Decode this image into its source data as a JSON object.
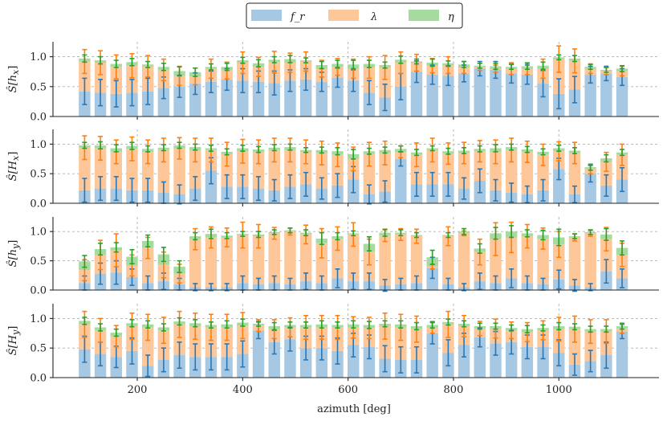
{
  "chart_data": {
    "type": "bar",
    "layout": "stacked bars with error bars, 4 vertically stacked panels sharing x axis",
    "legend": {
      "position": "top-center",
      "entries": [
        {
          "key": "fr",
          "label": "f_r",
          "color": "#a6c8e3"
        },
        {
          "key": "lambda",
          "label": "λ",
          "color": "#fdc799"
        },
        {
          "key": "eta",
          "label": "η",
          "color": "#a6dba0"
        }
      ]
    },
    "colors": {
      "fr": "#a6c8e3",
      "lambda": "#fdc799",
      "eta": "#a6dba0",
      "fr_err": "#2a77b4",
      "lambda_err": "#ff7f0e",
      "eta_err": "#2ca02c",
      "grid": "#b0b0b0"
    },
    "xlabel": "azimuth [deg]",
    "xlim": [
      40,
      1190
    ],
    "xticks": [
      200,
      400,
      600,
      800,
      1000
    ],
    "vlines": [
      200,
      400,
      600,
      800,
      1000
    ],
    "bar_width_units": 22,
    "x": [
      100,
      130,
      160,
      190,
      220,
      250,
      280,
      310,
      340,
      370,
      400,
      430,
      460,
      490,
      520,
      550,
      580,
      610,
      640,
      670,
      700,
      730,
      760,
      790,
      820,
      850,
      880,
      910,
      940,
      970,
      1000,
      1030,
      1060,
      1090,
      1120
    ],
    "panels": [
      {
        "ylabel": "Ŝ[hₓ]",
        "ylabel_main": "Ŝ[h",
        "ylabel_sub": "x",
        "ylim": [
          0,
          1.25
        ],
        "yticks": [
          "0.0",
          "0.5",
          "1.0"
        ],
        "ytick_values": [
          0,
          0.5,
          1.0
        ],
        "fr": [
          0.42,
          0.4,
          0.38,
          0.4,
          0.42,
          0.48,
          0.5,
          0.55,
          0.58,
          0.62,
          0.6,
          0.58,
          0.56,
          0.6,
          0.62,
          0.58,
          0.65,
          0.6,
          0.4,
          0.32,
          0.5,
          0.75,
          0.7,
          0.68,
          0.72,
          0.8,
          0.78,
          0.72,
          0.7,
          0.55,
          0.38,
          0.45,
          0.7,
          0.72,
          0.66
        ],
        "lambda": [
          0.5,
          0.5,
          0.45,
          0.45,
          0.42,
          0.3,
          0.18,
          0.12,
          0.22,
          0.15,
          0.3,
          0.25,
          0.35,
          0.3,
          0.3,
          0.22,
          0.18,
          0.2,
          0.42,
          0.5,
          0.4,
          0.15,
          0.15,
          0.18,
          0.1,
          0.03,
          0.02,
          0.08,
          0.1,
          0.25,
          0.58,
          0.48,
          0.1,
          0.04,
          0.1
        ],
        "eta": [
          0.05,
          0.04,
          0.05,
          0.06,
          0.03,
          0.05,
          0.08,
          0.07,
          0.03,
          0.06,
          0.04,
          0.06,
          0.04,
          0.06,
          0.02,
          0.06,
          0.05,
          0.07,
          0.06,
          0.04,
          0.05,
          0.02,
          0.05,
          0.03,
          0.05,
          0.02,
          0.04,
          0.03,
          0.04,
          0.05,
          0.03,
          0.04,
          0.03,
          0.02,
          0.04
        ],
        "fr_err": [
          0.22,
          0.22,
          0.22,
          0.22,
          0.22,
          0.18,
          0.18,
          0.18,
          0.18,
          0.18,
          0.2,
          0.18,
          0.2,
          0.18,
          0.18,
          0.16,
          0.16,
          0.18,
          0.2,
          0.22,
          0.22,
          0.18,
          0.16,
          0.16,
          0.14,
          0.12,
          0.14,
          0.16,
          0.16,
          0.22,
          0.25,
          0.22,
          0.14,
          0.12,
          0.14
        ],
        "lambda_err": [
          0.2,
          0.2,
          0.2,
          0.2,
          0.18,
          0.18,
          0.16,
          0.14,
          0.16,
          0.14,
          0.18,
          0.16,
          0.18,
          0.16,
          0.16,
          0.14,
          0.14,
          0.16,
          0.18,
          0.2,
          0.18,
          0.14,
          0.12,
          0.14,
          0.1,
          0.06,
          0.06,
          0.1,
          0.1,
          0.16,
          0.22,
          0.2,
          0.08,
          0.06,
          0.08
        ],
        "eta_err": [
          0.06,
          0.06,
          0.06,
          0.06,
          0.05,
          0.06,
          0.07,
          0.07,
          0.05,
          0.06,
          0.05,
          0.06,
          0.05,
          0.06,
          0.04,
          0.06,
          0.06,
          0.07,
          0.06,
          0.05,
          0.06,
          0.04,
          0.06,
          0.04,
          0.05,
          0.04,
          0.05,
          0.04,
          0.05,
          0.06,
          0.04,
          0.05,
          0.04,
          0.04,
          0.05
        ]
      },
      {
        "ylabel": "Ŝ[Hₓ]",
        "ylabel_main": "Ŝ[H",
        "ylabel_sub": "x",
        "ylim": [
          0,
          1.25
        ],
        "yticks": [
          "0.0",
          "0.5",
          "1.0"
        ],
        "ytick_values": [
          0,
          0.5,
          1.0
        ],
        "fr": [
          0.22,
          0.25,
          0.25,
          0.22,
          0.22,
          0.18,
          0.15,
          0.25,
          0.55,
          0.28,
          0.28,
          0.25,
          0.22,
          0.28,
          0.32,
          0.25,
          0.3,
          0.4,
          0.15,
          0.2,
          0.75,
          0.32,
          0.32,
          0.32,
          0.25,
          0.38,
          0.22,
          0.18,
          0.15,
          0.22,
          0.58,
          0.15,
          0.5,
          0.3,
          0.4
        ],
        "lambda": [
          0.72,
          0.68,
          0.62,
          0.7,
          0.65,
          0.72,
          0.78,
          0.65,
          0.35,
          0.55,
          0.6,
          0.62,
          0.68,
          0.62,
          0.55,
          0.6,
          0.52,
          0.35,
          0.68,
          0.65,
          0.12,
          0.5,
          0.58,
          0.52,
          0.6,
          0.5,
          0.65,
          0.72,
          0.72,
          0.6,
          0.3,
          0.7,
          0.08,
          0.4,
          0.42
        ],
        "eta": [
          0.04,
          0.05,
          0.06,
          0.05,
          0.05,
          0.04,
          0.05,
          0.05,
          0.03,
          0.04,
          0.05,
          0.04,
          0.04,
          0.05,
          0.03,
          0.05,
          0.06,
          0.08,
          0.05,
          0.05,
          0.05,
          0.04,
          0.03,
          0.04,
          0.04,
          0.04,
          0.06,
          0.05,
          0.04,
          0.05,
          0.05,
          0.04,
          0.03,
          0.06,
          0.04
        ],
        "fr_err": [
          0.2,
          0.2,
          0.2,
          0.2,
          0.2,
          0.18,
          0.16,
          0.2,
          0.22,
          0.2,
          0.2,
          0.2,
          0.18,
          0.2,
          0.2,
          0.18,
          0.2,
          0.22,
          0.16,
          0.18,
          0.12,
          0.2,
          0.2,
          0.2,
          0.18,
          0.2,
          0.18,
          0.16,
          0.14,
          0.18,
          0.18,
          0.14,
          0.14,
          0.18,
          0.2
        ],
        "lambda_err": [
          0.2,
          0.2,
          0.2,
          0.2,
          0.2,
          0.2,
          0.18,
          0.2,
          0.2,
          0.2,
          0.2,
          0.2,
          0.2,
          0.2,
          0.2,
          0.2,
          0.2,
          0.2,
          0.2,
          0.2,
          0.1,
          0.2,
          0.2,
          0.18,
          0.18,
          0.18,
          0.2,
          0.2,
          0.18,
          0.18,
          0.16,
          0.18,
          0.08,
          0.16,
          0.18
        ],
        "eta_err": [
          0.05,
          0.06,
          0.06,
          0.06,
          0.05,
          0.05,
          0.05,
          0.05,
          0.05,
          0.05,
          0.05,
          0.05,
          0.05,
          0.05,
          0.04,
          0.05,
          0.06,
          0.08,
          0.05,
          0.05,
          0.05,
          0.05,
          0.04,
          0.05,
          0.05,
          0.05,
          0.06,
          0.05,
          0.05,
          0.05,
          0.05,
          0.05,
          0.05,
          0.06,
          0.05
        ]
      },
      {
        "ylabel": "Ŝ[h_y]",
        "ylabel_main": "Ŝ[h",
        "ylabel_sub": "y",
        "ylim": [
          0,
          1.25
        ],
        "yticks": [
          "0.0",
          "0.5",
          "1.0"
        ],
        "ytick_values": [
          0,
          0.5,
          1.0
        ],
        "fr": [
          0.12,
          0.28,
          0.3,
          0.22,
          0.12,
          0.15,
          0.1,
          0.05,
          0.05,
          0.05,
          0.12,
          0.1,
          0.12,
          0.1,
          0.15,
          0.12,
          0.2,
          0.15,
          0.15,
          0.08,
          0.1,
          0.12,
          0.38,
          0.1,
          0.05,
          0.15,
          0.12,
          0.2,
          0.12,
          0.1,
          0.18,
          0.08,
          0.05,
          0.32,
          0.2
        ],
        "lambda": [
          0.22,
          0.32,
          0.38,
          0.2,
          0.6,
          0.28,
          0.18,
          0.82,
          0.85,
          0.85,
          0.82,
          0.82,
          0.85,
          0.9,
          0.8,
          0.68,
          0.68,
          0.8,
          0.5,
          0.85,
          0.85,
          0.8,
          0.02,
          0.82,
          0.92,
          0.5,
          0.75,
          0.7,
          0.8,
          0.78,
          0.6,
          0.82,
          0.92,
          0.55,
          0.4
        ],
        "eta": [
          0.15,
          0.1,
          0.05,
          0.15,
          0.12,
          0.18,
          0.12,
          0.05,
          0.06,
          0.03,
          0.02,
          0.03,
          0.02,
          0.02,
          0.03,
          0.08,
          0.04,
          0.02,
          0.14,
          0.05,
          0.03,
          0.02,
          0.16,
          0.02,
          0.03,
          0.06,
          0.1,
          0.1,
          0.05,
          0.06,
          0.12,
          0.02,
          0.02,
          0.08,
          0.12
        ],
        "fr_err": [
          0.12,
          0.18,
          0.2,
          0.14,
          0.12,
          0.14,
          0.1,
          0.06,
          0.06,
          0.06,
          0.12,
          0.1,
          0.12,
          0.1,
          0.14,
          0.12,
          0.16,
          0.14,
          0.14,
          0.1,
          0.1,
          0.12,
          0.18,
          0.1,
          0.06,
          0.14,
          0.12,
          0.16,
          0.12,
          0.1,
          0.16,
          0.1,
          0.06,
          0.2,
          0.16
        ],
        "lambda_err": [
          0.18,
          0.25,
          0.28,
          0.18,
          0.18,
          0.22,
          0.16,
          0.18,
          0.18,
          0.16,
          0.22,
          0.2,
          0.1,
          0.06,
          0.16,
          0.25,
          0.2,
          0.2,
          0.22,
          0.1,
          0.1,
          0.12,
          0.04,
          0.16,
          0.04,
          0.22,
          0.28,
          0.26,
          0.2,
          0.18,
          0.22,
          0.06,
          0.05,
          0.2,
          0.2
        ],
        "eta_err": [
          0.1,
          0.1,
          0.08,
          0.12,
          0.1,
          0.12,
          0.1,
          0.06,
          0.08,
          0.05,
          0.04,
          0.05,
          0.04,
          0.04,
          0.05,
          0.1,
          0.06,
          0.04,
          0.12,
          0.06,
          0.05,
          0.04,
          0.12,
          0.04,
          0.05,
          0.08,
          0.1,
          0.1,
          0.06,
          0.08,
          0.14,
          0.04,
          0.04,
          0.1,
          0.12
        ]
      },
      {
        "ylabel": "Ŝ[H_y]",
        "ylabel_main": "Ŝ[H",
        "ylabel_sub": "y",
        "ylim": [
          0,
          1.25
        ],
        "yticks": [
          "0.0",
          "0.5",
          "1.0"
        ],
        "ytick_values": [
          0,
          0.5,
          1.0
        ],
        "fr": [
          0.48,
          0.4,
          0.35,
          0.45,
          0.2,
          0.3,
          0.38,
          0.35,
          0.35,
          0.35,
          0.4,
          0.8,
          0.6,
          0.65,
          0.5,
          0.5,
          0.45,
          0.55,
          0.52,
          0.32,
          0.3,
          0.3,
          0.75,
          0.42,
          0.55,
          0.68,
          0.58,
          0.6,
          0.52,
          0.52,
          0.42,
          0.22,
          0.28,
          0.38,
          0.78
        ],
        "lambda": [
          0.42,
          0.4,
          0.35,
          0.42,
          0.65,
          0.5,
          0.52,
          0.52,
          0.5,
          0.5,
          0.48,
          0.08,
          0.22,
          0.2,
          0.35,
          0.35,
          0.4,
          0.3,
          0.32,
          0.55,
          0.55,
          0.52,
          0.1,
          0.48,
          0.32,
          0.15,
          0.25,
          0.2,
          0.25,
          0.28,
          0.4,
          0.6,
          0.5,
          0.4,
          0.05
        ],
        "eta": [
          0.06,
          0.05,
          0.06,
          0.05,
          0.05,
          0.05,
          0.05,
          0.05,
          0.04,
          0.05,
          0.05,
          0.03,
          0.05,
          0.04,
          0.04,
          0.05,
          0.04,
          0.05,
          0.05,
          0.04,
          0.05,
          0.05,
          0.04,
          0.04,
          0.04,
          0.04,
          0.04,
          0.04,
          0.05,
          0.04,
          0.05,
          0.04,
          0.04,
          0.04,
          0.04
        ],
        "fr_err": [
          0.22,
          0.2,
          0.18,
          0.22,
          0.18,
          0.2,
          0.22,
          0.22,
          0.22,
          0.22,
          0.22,
          0.14,
          0.2,
          0.2,
          0.2,
          0.2,
          0.22,
          0.2,
          0.2,
          0.22,
          0.22,
          0.22,
          0.18,
          0.22,
          0.2,
          0.16,
          0.2,
          0.2,
          0.2,
          0.2,
          0.22,
          0.18,
          0.18,
          0.22,
          0.12
        ],
        "lambda_err": [
          0.22,
          0.2,
          0.18,
          0.22,
          0.22,
          0.22,
          0.22,
          0.22,
          0.22,
          0.22,
          0.22,
          0.1,
          0.16,
          0.16,
          0.2,
          0.2,
          0.2,
          0.18,
          0.18,
          0.22,
          0.22,
          0.22,
          0.1,
          0.22,
          0.18,
          0.12,
          0.16,
          0.14,
          0.16,
          0.16,
          0.2,
          0.22,
          0.2,
          0.2,
          0.08
        ],
        "eta_err": [
          0.06,
          0.06,
          0.06,
          0.06,
          0.06,
          0.06,
          0.06,
          0.06,
          0.05,
          0.06,
          0.06,
          0.04,
          0.06,
          0.05,
          0.05,
          0.06,
          0.05,
          0.06,
          0.06,
          0.05,
          0.06,
          0.06,
          0.05,
          0.05,
          0.05,
          0.05,
          0.05,
          0.05,
          0.06,
          0.05,
          0.06,
          0.05,
          0.05,
          0.05,
          0.05
        ]
      }
    ]
  }
}
